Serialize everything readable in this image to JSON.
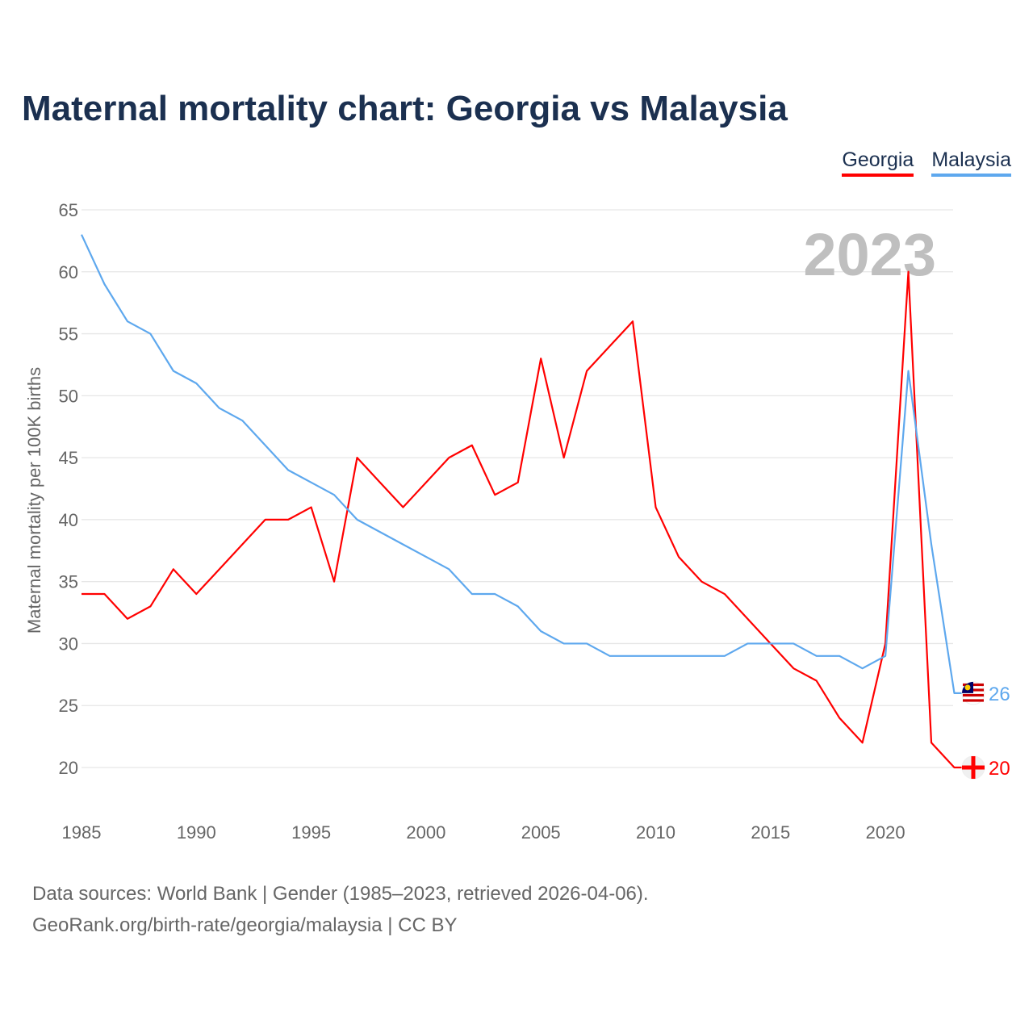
{
  "title": "Maternal mortality chart: Georgia vs Malaysia",
  "footer": {
    "line1": "Data sources: World Bank | Gender (1985–2023, retrieved 2026-04-06).",
    "line2": "GeoRank.org/birth-rate/georgia/malaysia | CC BY"
  },
  "chart_data": {
    "type": "line",
    "title": "Maternal mortality chart: Georgia vs Malaysia",
    "ylabel": "Maternal mortality per 100K births",
    "xlabel": "",
    "year_watermark": "2023",
    "xlim": [
      1985,
      2023
    ],
    "ylim": [
      17,
      65
    ],
    "x_ticks": [
      1985,
      1990,
      1995,
      2000,
      2005,
      2010,
      2015,
      2020
    ],
    "y_ticks": [
      20,
      25,
      30,
      35,
      40,
      45,
      50,
      55,
      60,
      65
    ],
    "grid": true,
    "legend_position": "top-right",
    "x": [
      1985,
      1986,
      1987,
      1988,
      1989,
      1990,
      1991,
      1992,
      1993,
      1994,
      1995,
      1996,
      1997,
      1998,
      1999,
      2000,
      2001,
      2002,
      2003,
      2004,
      2005,
      2006,
      2007,
      2008,
      2009,
      2010,
      2011,
      2012,
      2013,
      2014,
      2015,
      2016,
      2017,
      2018,
      2019,
      2020,
      2021,
      2022,
      2023
    ],
    "series": [
      {
        "name": "Georgia",
        "color": "#ff0000",
        "end_label": "20",
        "values": [
          34,
          34,
          32,
          33,
          36,
          34,
          36,
          38,
          40,
          40,
          41,
          35,
          45,
          43,
          41,
          43,
          45,
          46,
          42,
          43,
          53,
          45,
          52,
          54,
          56,
          41,
          37,
          35,
          34,
          32,
          30,
          28,
          27,
          24,
          22,
          30,
          60,
          22,
          20
        ]
      },
      {
        "name": "Malaysia",
        "color": "#5ea8ee",
        "end_label": "26",
        "values": [
          63,
          59,
          56,
          55,
          52,
          51,
          49,
          48,
          46,
          44,
          43,
          42,
          40,
          39,
          38,
          37,
          36,
          34,
          34,
          33,
          31,
          30,
          30,
          29,
          29,
          29,
          29,
          29,
          29,
          30,
          30,
          30,
          29,
          29,
          28,
          29,
          52,
          38,
          26
        ]
      }
    ]
  }
}
